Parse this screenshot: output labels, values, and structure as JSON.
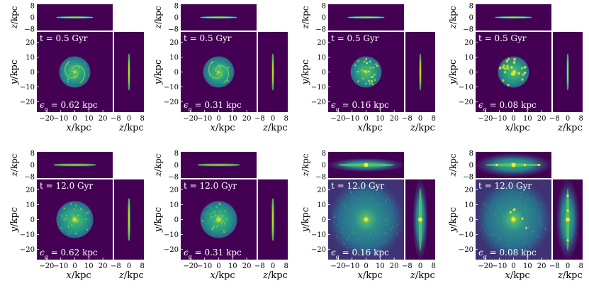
{
  "figure": {
    "description_note": "8 panels: top row t = 0.5 Gyr, bottom row t = 12.0 Gyr; columns epsilon_g = 0.62, 0.31, 0.16, 0.08 kpc",
    "colors": {
      "background": "#440154",
      "mid": "#21908d",
      "high": "#5ec962",
      "peak": "#fde725",
      "separator": "#ffffff",
      "label_text": "#ffffff"
    }
  },
  "chart_data": [
    {
      "type": "heatmap",
      "row": 0,
      "col": 0,
      "time_label": "t = 0.5 Gyr",
      "softening_label": "0.62 kpc",
      "morphology": "smooth spiral disc",
      "xlabel": "x/kpc",
      "ylabel": "y/kpc",
      "zlabel": "z/kpc",
      "xlim": [
        -27,
        27
      ],
      "ylim": [
        -27,
        27
      ],
      "zlim": [
        -9,
        9
      ],
      "xticks": [
        -20,
        -10,
        0,
        10,
        20
      ],
      "yticks": [
        -20,
        -10,
        0,
        10,
        20
      ],
      "zticks": [
        -8,
        0,
        8
      ],
      "zticks_h": [
        -8,
        0,
        8
      ]
    },
    {
      "type": "heatmap",
      "row": 0,
      "col": 1,
      "time_label": "t = 0.5 Gyr",
      "softening_label": "0.31 kpc",
      "morphology": "spiral disc",
      "xlabel": "x/kpc",
      "ylabel": "y/kpc",
      "zlabel": "z/kpc",
      "xlim": [
        -27,
        27
      ],
      "ylim": [
        -27,
        27
      ],
      "zlim": [
        -9,
        9
      ],
      "xticks": [
        -20,
        -10,
        0,
        10,
        20
      ],
      "yticks": [
        -20,
        -10,
        0,
        10,
        20
      ],
      "zticks": [
        -8,
        0,
        8
      ],
      "zticks_h": [
        -8,
        0,
        8
      ]
    },
    {
      "type": "heatmap",
      "row": 0,
      "col": 2,
      "time_label": "t = 0.5 Gyr",
      "softening_label": "0.16 kpc",
      "morphology": "clumpy disc",
      "xlabel": "x/kpc",
      "ylabel": "y/kpc",
      "zlabel": "z/kpc",
      "xlim": [
        -27,
        27
      ],
      "ylim": [
        -27,
        27
      ],
      "zlim": [
        -9,
        9
      ],
      "xticks": [
        -20,
        -10,
        0,
        10,
        20
      ],
      "yticks": [
        -20,
        -10,
        0,
        10,
        20
      ],
      "zticks": [
        -8,
        0,
        8
      ],
      "zticks_h": [
        -8,
        0,
        8
      ]
    },
    {
      "type": "heatmap",
      "row": 0,
      "col": 3,
      "time_label": "t = 0.5 Gyr",
      "softening_label": "0.08 kpc",
      "morphology": "very clumpy disc",
      "xlabel": "x/kpc",
      "ylabel": "y/kpc",
      "zlabel": "z/kpc",
      "xlim": [
        -27,
        27
      ],
      "ylim": [
        -27,
        27
      ],
      "zlim": [
        -9,
        9
      ],
      "xticks": [
        -20,
        -10,
        0,
        10,
        20
      ],
      "yticks": [
        -20,
        -10,
        0,
        10,
        20
      ],
      "zticks": [
        -8,
        0,
        8
      ],
      "zticks_h": [
        -8,
        0,
        8
      ]
    },
    {
      "type": "heatmap",
      "row": 1,
      "col": 0,
      "time_label": "t = 12.0 Gyr",
      "softening_label": "0.62 kpc",
      "morphology": "flocculent disc",
      "xlabel": "x/kpc",
      "ylabel": "y/kpc",
      "zlabel": "z/kpc",
      "xlim": [
        -27,
        27
      ],
      "ylim": [
        -27,
        27
      ],
      "zlim": [
        -9,
        9
      ],
      "xticks": [
        -20,
        -10,
        0,
        10,
        20
      ],
      "yticks": [
        -20,
        -10,
        0,
        10,
        20
      ],
      "zticks": [
        -8,
        0,
        8
      ],
      "zticks_h": [
        -8,
        0,
        8
      ]
    },
    {
      "type": "heatmap",
      "row": 1,
      "col": 1,
      "time_label": "t = 12.0 Gyr",
      "softening_label": "0.31 kpc",
      "morphology": "flocculent disc",
      "xlabel": "x/kpc",
      "ylabel": "y/kpc",
      "zlabel": "z/kpc",
      "xlim": [
        -27,
        27
      ],
      "ylim": [
        -27,
        27
      ],
      "zlim": [
        -9,
        9
      ],
      "xticks": [
        -20,
        -10,
        0,
        10,
        20
      ],
      "yticks": [
        -20,
        -10,
        0,
        10,
        20
      ],
      "zticks": [
        -8,
        0,
        8
      ],
      "zticks_h": [
        -8,
        0,
        8
      ]
    },
    {
      "type": "heatmap",
      "row": 1,
      "col": 2,
      "time_label": "t = 12.0 Gyr",
      "softening_label": "0.16 kpc",
      "morphology": "diffuse thick disc",
      "xlabel": "x/kpc",
      "ylabel": "y/kpc",
      "zlabel": "z/kpc",
      "xlim": [
        -27,
        27
      ],
      "ylim": [
        -27,
        27
      ],
      "zlim": [
        -9,
        9
      ],
      "xticks": [
        -20,
        -10,
        0,
        10,
        20
      ],
      "yticks": [
        -20,
        -10,
        0,
        10,
        20
      ],
      "zticks": [
        -8,
        0,
        8
      ],
      "zticks_h": [
        -8,
        0,
        8
      ]
    },
    {
      "type": "heatmap",
      "row": 1,
      "col": 3,
      "time_label": "t = 12.0 Gyr",
      "softening_label": "0.08 kpc",
      "morphology": "diffuse disc with clumps",
      "xlabel": "x/kpc",
      "ylabel": "y/kpc",
      "zlabel": "z/kpc",
      "xlim": [
        -27,
        27
      ],
      "ylim": [
        -27,
        27
      ],
      "zlim": [
        -9,
        9
      ],
      "xticks": [
        -20,
        -10,
        0,
        10,
        20
      ],
      "yticks": [
        -20,
        -10,
        0,
        10,
        20
      ],
      "zticks": [
        -8,
        0,
        8
      ],
      "zticks_h": [
        -8,
        0,
        8
      ]
    }
  ]
}
